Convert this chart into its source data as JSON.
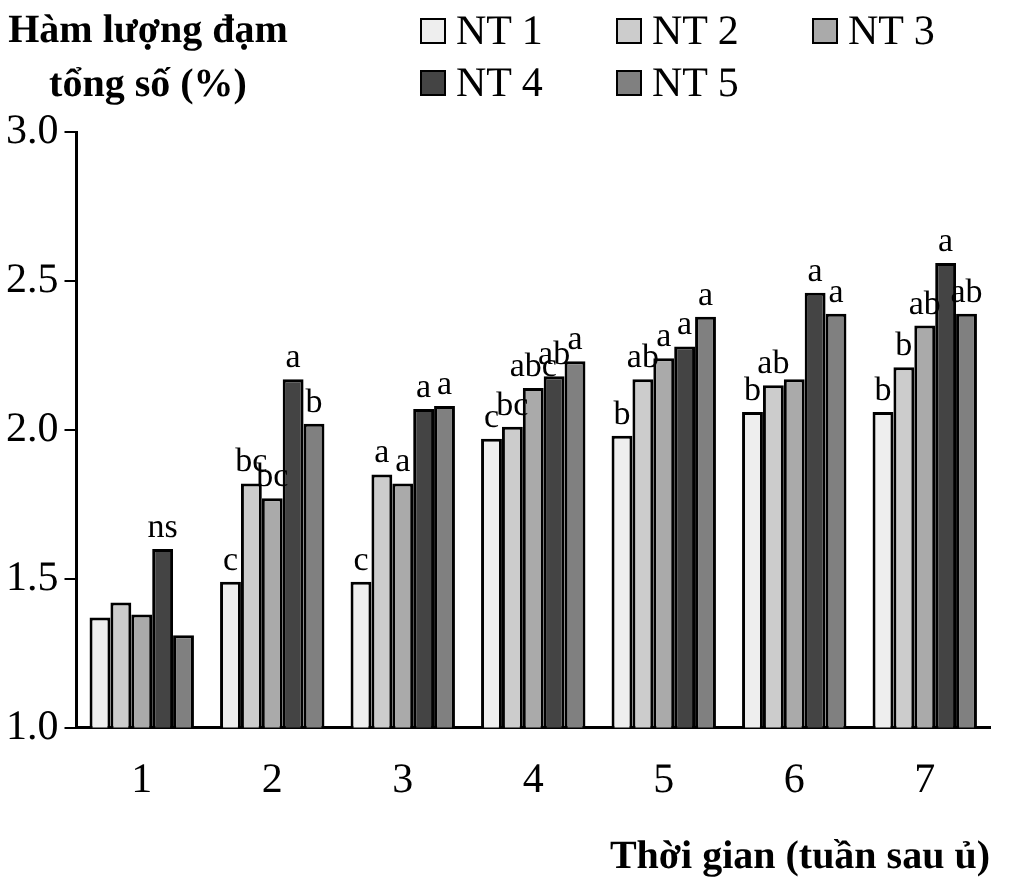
{
  "chart_data": {
    "type": "bar",
    "ylabel": "Hàm lượng đạm tổng số (%)",
    "xlabel": "Thời gian (tuần sau ủ)",
    "categories": [
      "1",
      "2",
      "3",
      "4",
      "5",
      "6",
      "7"
    ],
    "series": [
      {
        "name": "NT 1",
        "color": "#eeeeee",
        "values": [
          1.37,
          1.49,
          1.49,
          1.97,
          1.98,
          2.06,
          2.06
        ],
        "value_labels": [
          null,
          "c",
          "c",
          "c",
          "b",
          "b",
          "b"
        ]
      },
      {
        "name": "NT 2",
        "color": "#cccccc",
        "values": [
          1.42,
          1.82,
          1.85,
          2.01,
          2.17,
          2.15,
          2.21
        ],
        "value_labels": [
          null,
          "bc",
          "a",
          "bc",
          "ab",
          "ab",
          "b"
        ]
      },
      {
        "name": "NT 3",
        "color": "#aaaaaa",
        "values": [
          1.38,
          1.77,
          1.82,
          2.14,
          2.24,
          2.17,
          2.35
        ],
        "value_labels": [
          null,
          "bc",
          "a",
          "abc",
          "a",
          null,
          "ab"
        ]
      },
      {
        "name": "NT 4",
        "color": "#444444",
        "values": [
          1.6,
          2.17,
          2.07,
          2.18,
          2.28,
          2.46,
          2.56
        ],
        "value_labels": [
          "ns",
          "a",
          "a",
          "ab",
          "a",
          "a",
          "a"
        ]
      },
      {
        "name": "NT 5",
        "color": "#808080",
        "values": [
          1.31,
          2.02,
          2.08,
          2.23,
          2.38,
          2.39,
          2.39
        ],
        "value_labels": [
          null,
          "b",
          "a",
          "a",
          "a",
          "a",
          "ab"
        ]
      }
    ],
    "ylim": [
      1.0,
      3.0
    ],
    "yticks": [
      {
        "value": 1.0,
        "label": "1.0"
      },
      {
        "value": 1.5,
        "label": "1.5"
      },
      {
        "value": 2.0,
        "label": "2.0"
      },
      {
        "value": 2.5,
        "label": "2.5"
      },
      {
        "value": 3.0,
        "label": "3.0"
      }
    ],
    "grid": false,
    "legend": "top right"
  }
}
